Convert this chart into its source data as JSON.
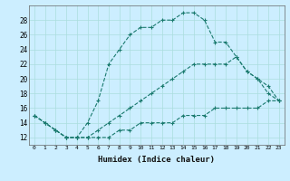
{
  "xlabel": "Humidex (Indice chaleur)",
  "bg_color": "#cceeff",
  "line_color": "#1a7a6e",
  "grid_color": "#aadddd",
  "xlim": [
    -0.5,
    23.5
  ],
  "ylim": [
    11,
    30
  ],
  "yticks": [
    12,
    14,
    16,
    18,
    20,
    22,
    24,
    26,
    28
  ],
  "xticks": [
    0,
    1,
    2,
    3,
    4,
    5,
    6,
    7,
    8,
    9,
    10,
    11,
    12,
    13,
    14,
    15,
    16,
    17,
    18,
    19,
    20,
    21,
    22,
    23
  ],
  "series": [
    {
      "x": [
        0,
        1,
        2,
        3,
        4,
        5,
        6,
        7,
        8,
        9,
        10,
        11,
        12,
        13,
        14,
        15,
        16,
        17,
        18,
        19,
        20,
        21,
        22,
        23
      ],
      "y": [
        15,
        14,
        13,
        12,
        12,
        14,
        17,
        22,
        24,
        26,
        27,
        27,
        28,
        28,
        29,
        29,
        28,
        25,
        25,
        23,
        21,
        20,
        18,
        17
      ]
    },
    {
      "x": [
        0,
        1,
        2,
        3,
        4,
        5,
        6,
        7,
        8,
        9,
        10,
        11,
        12,
        13,
        14,
        15,
        16,
        17,
        18,
        19,
        20,
        21,
        22,
        23
      ],
      "y": [
        15,
        14,
        13,
        12,
        12,
        12,
        13,
        14,
        15,
        16,
        17,
        18,
        19,
        20,
        21,
        22,
        22,
        22,
        22,
        23,
        21,
        20,
        19,
        17
      ]
    },
    {
      "x": [
        0,
        1,
        2,
        3,
        4,
        5,
        6,
        7,
        8,
        9,
        10,
        11,
        12,
        13,
        14,
        15,
        16,
        17,
        18,
        19,
        20,
        21,
        22,
        23
      ],
      "y": [
        15,
        14,
        13,
        12,
        12,
        12,
        12,
        12,
        13,
        13,
        14,
        14,
        14,
        14,
        15,
        15,
        15,
        16,
        16,
        16,
        16,
        16,
        17,
        17
      ]
    }
  ]
}
